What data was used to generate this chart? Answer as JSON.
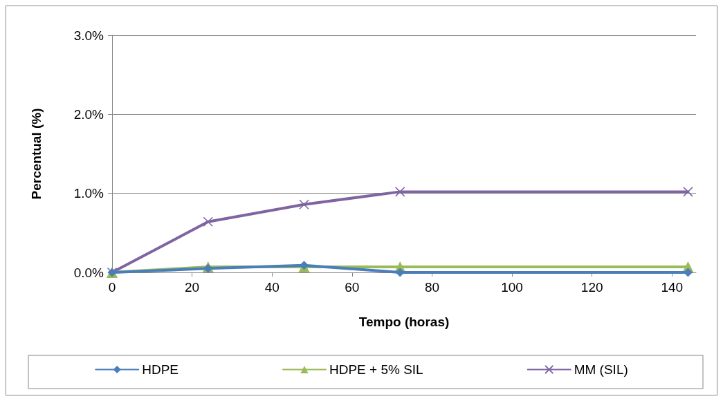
{
  "chart_data": {
    "type": "line",
    "xlabel": "Tempo (horas)",
    "ylabel": "Percentual (%)",
    "x": [
      0,
      24,
      48,
      72,
      144
    ],
    "series": [
      {
        "name": "HDPE",
        "color": "#4a7ebb",
        "marker": "diamond",
        "values": [
          0,
          0.05,
          0.09,
          0,
          0
        ]
      },
      {
        "name": "HDPE + 5% SIL",
        "color": "#9bbb59",
        "marker": "triangle",
        "values": [
          0,
          0.07,
          0.07,
          0.07,
          0.07
        ]
      },
      {
        "name": "MM (SIL)",
        "color": "#8064a2",
        "marker": "cross",
        "values": [
          0,
          0.64,
          0.86,
          1.02,
          1.02
        ]
      }
    ],
    "xlim": [
      0,
      146
    ],
    "xticks": [
      0,
      20,
      40,
      60,
      80,
      100,
      120,
      140
    ],
    "ylim": [
      0,
      3
    ],
    "yticks": [
      {
        "value": 0,
        "label": "0.0%"
      },
      {
        "value": 1,
        "label": "1.0%"
      },
      {
        "value": 2,
        "label": "2.0%"
      },
      {
        "value": 3,
        "label": "3.0%"
      }
    ],
    "grid": "y",
    "legend": "bottom",
    "line_style": "solid"
  }
}
